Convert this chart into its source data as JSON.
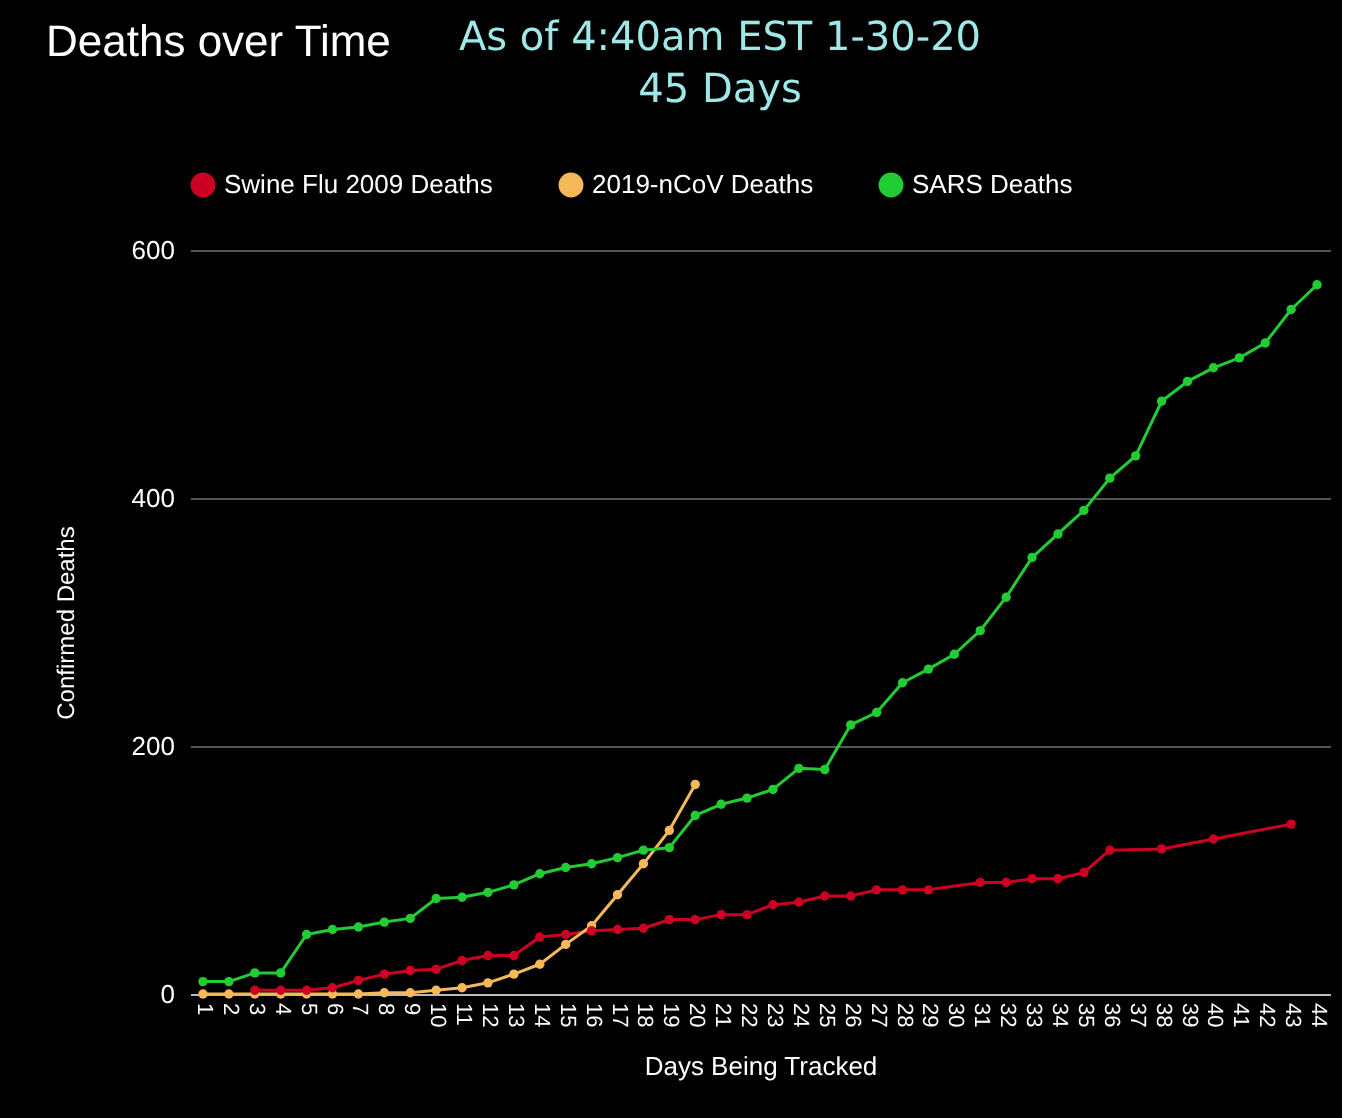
{
  "chart_data": {
    "type": "line",
    "title": "Deaths over Time",
    "subtitle": "As of 4:40am EST 1-30-20\n45 Days",
    "xlabel": "Days Being Tracked",
    "ylabel": "Confirmed Deaths",
    "categories": [
      "1",
      "2",
      "3",
      "4",
      "5",
      "6",
      "7",
      "8",
      "9",
      "10",
      "11",
      "12",
      "13",
      "14",
      "15",
      "16",
      "17",
      "18",
      "19",
      "20",
      "21",
      "22",
      "23",
      "24",
      "25",
      "26",
      "27",
      "28",
      "29",
      "30",
      "31",
      "32",
      "33",
      "34",
      "35",
      "36",
      "37",
      "38",
      "39",
      "40",
      "41",
      "42",
      "43",
      "44"
    ],
    "series": [
      {
        "name": "Swine Flu 2009 Deaths",
        "color": "#cc0022",
        "values": [
          null,
          null,
          3,
          3,
          3,
          5,
          11,
          16,
          19,
          20,
          27,
          31,
          31,
          46,
          48,
          51,
          52,
          53,
          60,
          60,
          64,
          64,
          72,
          74,
          79,
          79,
          84,
          84,
          84,
          null,
          90,
          90,
          93,
          93,
          98,
          116,
          null,
          117,
          null,
          125,
          null,
          null,
          137,
          null
        ]
      },
      {
        "name": "2019-nCoV Deaths",
        "color": "#f5b95a",
        "values": [
          0,
          0,
          0,
          0,
          0,
          0,
          0,
          1,
          1,
          3,
          5,
          9,
          16,
          24,
          40,
          55,
          80,
          105,
          132,
          169,
          null,
          null,
          null,
          null,
          null,
          null,
          null,
          null,
          null,
          null,
          null,
          null,
          null,
          null,
          null,
          null,
          null,
          null,
          null,
          null,
          null,
          null,
          null,
          null
        ]
      },
      {
        "name": "SARS Deaths",
        "color": "#22cc33",
        "values": [
          10,
          10,
          17,
          17,
          48,
          52,
          54,
          58,
          61,
          77,
          78,
          82,
          88,
          97,
          102,
          105,
          110,
          116,
          118,
          144,
          153,
          158,
          165,
          182,
          181,
          217,
          227,
          251,
          262,
          274,
          293,
          320,
          352,
          371,
          390,
          416,
          434,
          478,
          494,
          505,
          513,
          525,
          552,
          572
        ]
      }
    ],
    "ylim": [
      0,
      600
    ],
    "yticks": [
      0,
      200,
      400,
      600
    ],
    "grid": "y",
    "legend": "top",
    "marker": "circle",
    "line_style": "solid"
  }
}
